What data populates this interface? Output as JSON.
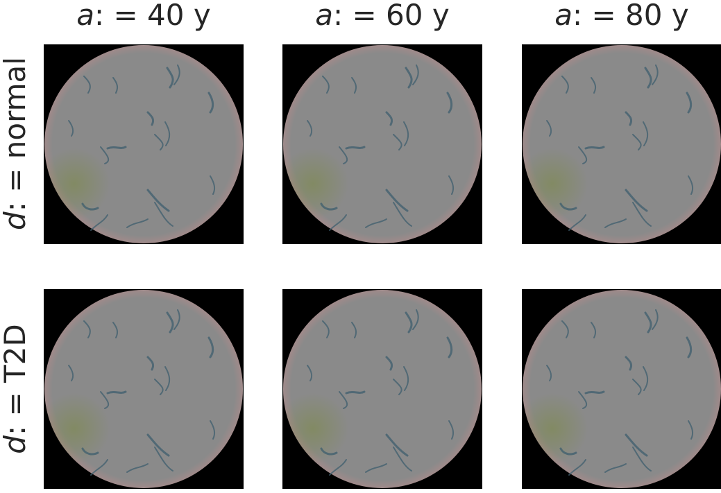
{
  "column_titles": [
    {
      "var": "a",
      "rest": ": = 40 y"
    },
    {
      "var": "a",
      "rest": ": = 60 y"
    },
    {
      "var": "a",
      "rest": ": = 80 y"
    }
  ],
  "row_titles": [
    {
      "var": "d",
      "rest": ": = normal"
    },
    {
      "var": "d",
      "rest": ": = T2D"
    }
  ],
  "images": {
    "description_colors": {
      "background": "#000000",
      "fundus": "#8a8a8a",
      "vessel": "#3e5d6e",
      "rim": "#a08a8a",
      "tint": "#7d8a4a"
    },
    "grid_rows": 2,
    "grid_cols": 3
  }
}
